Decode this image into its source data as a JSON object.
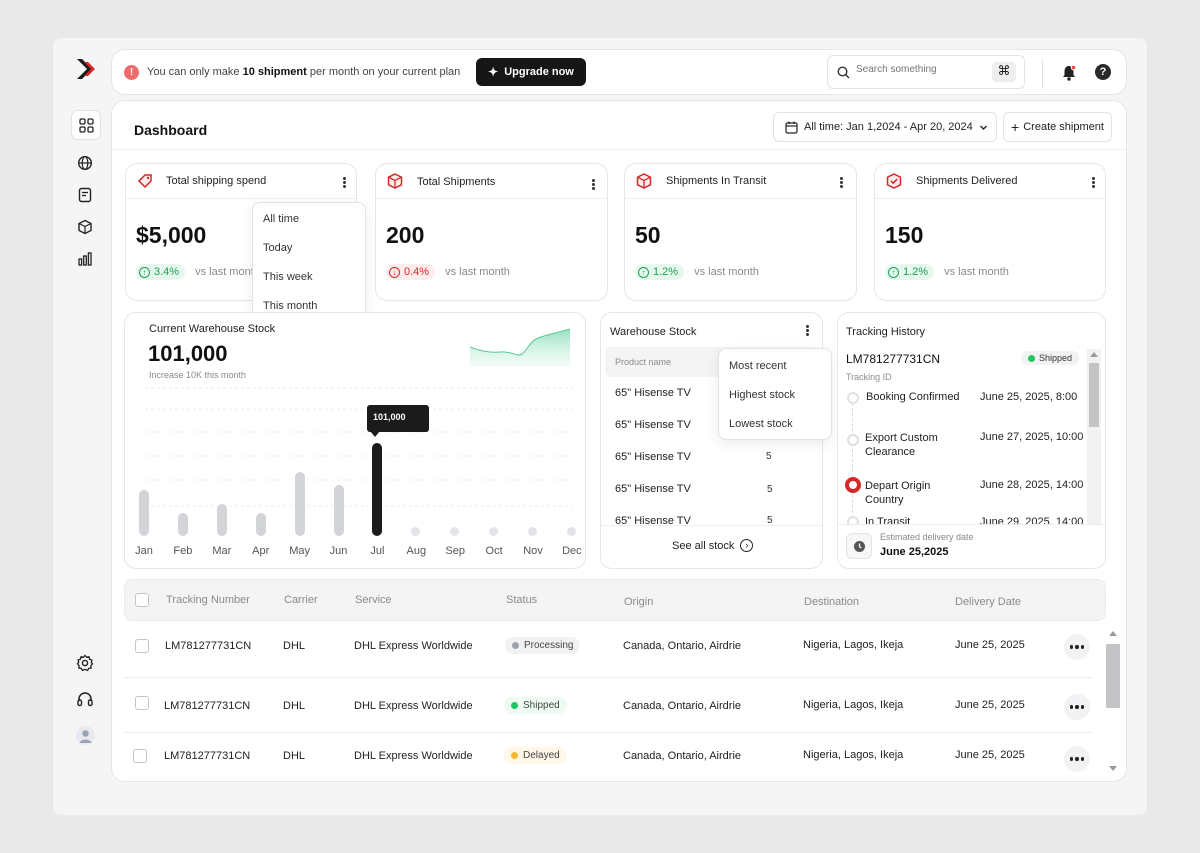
{
  "banner": {
    "prefix": "You can only make",
    "highlight": "10 shipment",
    "suffix": "per month on your current plan",
    "upgrade_label": "Upgrade now"
  },
  "search": {
    "placeholder": "Search something",
    "shortcut": "⌘"
  },
  "header": {
    "title": "Dashboard",
    "date_range": "All time: Jan 1,2024 - Apr 20, 2024",
    "create_label": "Create shipment"
  },
  "stats": [
    {
      "title": "Total shipping spend",
      "value": "$5,000",
      "change": "3.4%",
      "trend": "up",
      "compare": "vs last month"
    },
    {
      "title": "Total Shipments",
      "value": "200",
      "change": "0.4%",
      "trend": "down",
      "compare": "vs last month"
    },
    {
      "title": "Shipments In Transit",
      "value": "50",
      "change": "1.2%",
      "trend": "up",
      "compare": "vs last month"
    },
    {
      "title": "Shipments Delivered",
      "value": "150",
      "change": "1.2%",
      "trend": "up",
      "compare": "vs last month"
    }
  ],
  "time_menu": [
    "All time",
    "Today",
    "This week",
    "This month"
  ],
  "warehouse_chart": {
    "title": "Current Warehouse Stock",
    "value": "101,000",
    "subtitle": "Increase 10K this month",
    "tooltip": "101,000"
  },
  "chart_data": {
    "type": "bar",
    "categories": [
      "Jan",
      "Feb",
      "Mar",
      "Apr",
      "May",
      "Jun",
      "Jul",
      "Aug",
      "Sep",
      "Oct",
      "Nov",
      "Dec"
    ],
    "values": [
      50,
      25,
      35,
      25,
      70,
      55,
      101,
      0,
      0,
      0,
      0,
      0
    ],
    "highlight_index": 6,
    "title": "Current Warehouse Stock"
  },
  "warehouse_stock": {
    "title": "Warehouse Stock",
    "column_product": "Product name",
    "rows": [
      {
        "product": "65\" Hisense TV",
        "qty": ""
      },
      {
        "product": "65\" Hisense TV",
        "qty": ""
      },
      {
        "product": "65\" Hisense TV",
        "qty": "5"
      },
      {
        "product": "65\" Hisense TV",
        "qty": "5"
      },
      {
        "product": "65\" Hisense TV",
        "qty": "5"
      }
    ],
    "see_all": "See all stock",
    "sort_menu": [
      "Most recent",
      "Highest stock",
      "Lowest stock"
    ]
  },
  "tracking": {
    "title": "Tracking History",
    "id": "LM781277731CN",
    "id_label": "Tracking ID",
    "status": "Shipped",
    "events": [
      {
        "label": "Booking Confirmed",
        "date": "June 25, 2025, 8:00"
      },
      {
        "label": "Export Custom Clearance",
        "date": "June 27, 2025, 10:00"
      },
      {
        "label": "Depart Origin Country",
        "date": "June 28, 2025, 14:00"
      },
      {
        "label": "In Transit",
        "date": "June 29, 2025, 14:00"
      }
    ],
    "delivery_label": "Estimated delivery date",
    "delivery_date": "June 25,2025"
  },
  "table": {
    "headers": [
      "Tracking Number",
      "Carrier",
      "Service",
      "Status",
      "Origin",
      "Destination",
      "Delivery Date"
    ],
    "rows": [
      {
        "tracking": "LM781277731CN",
        "carrier": "DHL",
        "service": "DHL Express Worldwide",
        "status": "Processing",
        "origin": "Canada, Ontario, Airdrie",
        "destination": "Nigeria, Lagos, Ikeja",
        "date": "June 25, 2025"
      },
      {
        "tracking": "LM781277731CN",
        "carrier": "DHL",
        "service": "DHL Express Worldwide",
        "status": "Shipped",
        "origin": "Canada, Ontario, Airdrie",
        "destination": "Nigeria, Lagos, Ikeja",
        "date": "June 25, 2025"
      },
      {
        "tracking": "LM781277731CN",
        "carrier": "DHL",
        "service": "DHL Express Worldwide",
        "status": "Delayed",
        "origin": "Canada, Ontario, Airdrie",
        "destination": "Nigeria, Lagos, Ikeja",
        "date": "June 25, 2025"
      }
    ]
  },
  "colors": {
    "brand": "#d62828",
    "dark": "#1b1b1b",
    "shipped": "#22c55e",
    "processing": "#9ca3af",
    "delayed": "#f5b82e"
  },
  "icons": {
    "sidebar_top": [
      "grid-icon",
      "globe-icon",
      "invoice-icon",
      "package-icon",
      "analytics-icon"
    ],
    "sidebar_bottom": [
      "settings-icon",
      "headphones-icon",
      "user-avatar-icon"
    ]
  }
}
